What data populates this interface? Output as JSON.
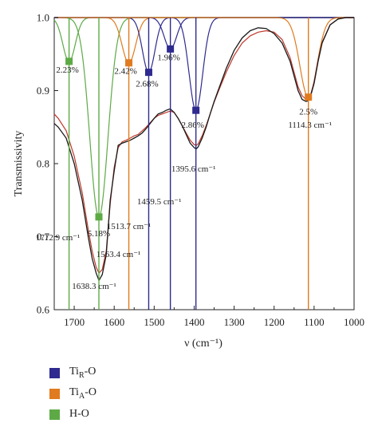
{
  "chart_data": {
    "type": "line",
    "xlabel": "ν (cm⁻¹)",
    "ylabel": "Transmissivity",
    "xlim": [
      1750,
      1000
    ],
    "ylim": [
      0.6,
      1.0
    ],
    "x_ticks": [
      "1700",
      "1600",
      "1500",
      "1400",
      "1300",
      "1200",
      "1100",
      "1000"
    ],
    "y_ticks": [
      "0.6",
      "0.7",
      "0.8",
      "0.9",
      "1.0"
    ],
    "colors": {
      "TiR": "#2e2a8f",
      "TiA": "#e07b1f",
      "HO": "#5daa45",
      "exp": "#1a1a1a",
      "fit": "#c0392b"
    },
    "peaks": [
      {
        "group": "HO",
        "center": 1712.9,
        "min": 0.94,
        "width": 22,
        "percent": "2.23%",
        "wavenumber": "1712.9 cm⁻¹"
      },
      {
        "group": "HO",
        "center": 1638.3,
        "min": 0.727,
        "width": 32,
        "percent": "5.18%",
        "wavenumber": "1638.3 cm⁻¹"
      },
      {
        "group": "TiA",
        "center": 1563.4,
        "min": 0.938,
        "width": 24,
        "percent": "2.42%",
        "wavenumber": "1563.4 cm⁻¹"
      },
      {
        "group": "TiR",
        "center": 1513.7,
        "min": 0.925,
        "width": 22,
        "percent": "2.68%",
        "wavenumber": "1513.7 cm⁻¹"
      },
      {
        "group": "TiR",
        "center": 1459.5,
        "min": 0.957,
        "width": 22,
        "percent": "1.96%",
        "wavenumber": "1459.5 cm⁻¹"
      },
      {
        "group": "TiR",
        "center": 1395.6,
        "min": 0.873,
        "width": 24,
        "percent": "2.86%",
        "wavenumber": "1395.6 cm⁻¹"
      },
      {
        "group": "TiA",
        "center": 1114.3,
        "min": 0.891,
        "width": 30,
        "percent": "2.5%",
        "wavenumber": "1114.3 cm⁻¹"
      }
    ],
    "experimental": {
      "x": [
        1750,
        1740,
        1720,
        1700,
        1680,
        1665,
        1655,
        1645,
        1638,
        1630,
        1620,
        1610,
        1600,
        1590,
        1580,
        1570,
        1560,
        1550,
        1540,
        1530,
        1520,
        1510,
        1500,
        1490,
        1480,
        1470,
        1460,
        1450,
        1440,
        1430,
        1420,
        1410,
        1400,
        1395,
        1390,
        1380,
        1370,
        1360,
        1350,
        1340,
        1320,
        1300,
        1280,
        1260,
        1240,
        1220,
        1200,
        1180,
        1160,
        1150,
        1140,
        1130,
        1120,
        1115,
        1110,
        1100,
        1090,
        1080,
        1060,
        1040,
        1020,
        1000
      ],
      "y": [
        0.855,
        0.85,
        0.835,
        0.8,
        0.75,
        0.7,
        0.67,
        0.65,
        0.64,
        0.648,
        0.675,
        0.75,
        0.79,
        0.825,
        0.828,
        0.83,
        0.832,
        0.835,
        0.838,
        0.842,
        0.848,
        0.855,
        0.862,
        0.868,
        0.87,
        0.873,
        0.875,
        0.87,
        0.862,
        0.852,
        0.84,
        0.828,
        0.822,
        0.82,
        0.823,
        0.835,
        0.85,
        0.868,
        0.885,
        0.9,
        0.93,
        0.955,
        0.972,
        0.982,
        0.986,
        0.985,
        0.978,
        0.965,
        0.94,
        0.92,
        0.9,
        0.888,
        0.885,
        0.886,
        0.89,
        0.91,
        0.94,
        0.965,
        0.99,
        0.998,
        1.0,
        1.0
      ]
    },
    "fit": {
      "x": [
        1750,
        1740,
        1720,
        1700,
        1680,
        1665,
        1655,
        1645,
        1638,
        1630,
        1620,
        1610,
        1600,
        1590,
        1580,
        1570,
        1560,
        1550,
        1540,
        1530,
        1520,
        1510,
        1500,
        1490,
        1480,
        1470,
        1460,
        1450,
        1440,
        1430,
        1420,
        1410,
        1400,
        1395,
        1390,
        1380,
        1370,
        1360,
        1350,
        1340,
        1320,
        1300,
        1280,
        1260,
        1240,
        1220,
        1200,
        1180,
        1160,
        1150,
        1140,
        1130,
        1120,
        1115,
        1110,
        1100,
        1090,
        1080,
        1060,
        1040,
        1020,
        1000
      ],
      "y": [
        0.868,
        0.862,
        0.845,
        0.81,
        0.76,
        0.71,
        0.68,
        0.658,
        0.65,
        0.655,
        0.68,
        0.745,
        0.795,
        0.822,
        0.83,
        0.832,
        0.835,
        0.838,
        0.84,
        0.845,
        0.85,
        0.856,
        0.862,
        0.866,
        0.868,
        0.87,
        0.872,
        0.87,
        0.862,
        0.852,
        0.842,
        0.832,
        0.826,
        0.825,
        0.827,
        0.838,
        0.852,
        0.868,
        0.884,
        0.898,
        0.925,
        0.948,
        0.965,
        0.975,
        0.98,
        0.982,
        0.98,
        0.97,
        0.945,
        0.925,
        0.905,
        0.893,
        0.888,
        0.888,
        0.892,
        0.912,
        0.942,
        0.966,
        0.99,
        0.998,
        1.0,
        1.0
      ]
    }
  },
  "legend": [
    {
      "key": "TiR",
      "base": "Ti",
      "sub": "R",
      "suffix": "-O"
    },
    {
      "key": "TiA",
      "base": "Ti",
      "sub": "A",
      "suffix": "-O"
    },
    {
      "key": "HO",
      "base": "H-O",
      "sub": "",
      "suffix": ""
    }
  ]
}
